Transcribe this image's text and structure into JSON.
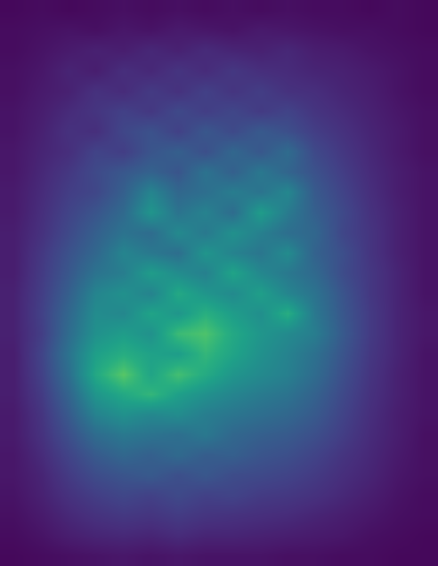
{
  "chart_data": {
    "type": "heatmap",
    "color": "Viridis",
    "tick_labels": false,
    "grid": false,
    "zlim": [
      0,
      1
    ],
    "cells": [
      [
        0.02,
        0.03,
        0.02,
        0.03,
        0.04,
        0.03,
        0.04,
        0.03,
        0.04,
        0.03,
        0.04,
        0.03,
        0.03,
        0.02,
        0.03,
        0.02
      ],
      [
        0.03,
        0.04,
        0.05,
        0.04,
        0.06,
        0.05,
        0.07,
        0.06,
        0.05,
        0.07,
        0.06,
        0.05,
        0.04,
        0.04,
        0.03,
        0.02
      ],
      [
        0.03,
        0.05,
        0.07,
        0.09,
        0.08,
        0.11,
        0.09,
        0.12,
        0.1,
        0.09,
        0.11,
        0.08,
        0.07,
        0.05,
        0.04,
        0.03
      ],
      [
        0.04,
        0.06,
        0.1,
        0.08,
        0.13,
        0.11,
        0.15,
        0.12,
        0.16,
        0.13,
        0.12,
        0.1,
        0.09,
        0.07,
        0.05,
        0.03
      ],
      [
        0.04,
        0.07,
        0.09,
        0.14,
        0.12,
        0.17,
        0.14,
        0.19,
        0.15,
        0.18,
        0.14,
        0.13,
        0.1,
        0.08,
        0.05,
        0.03
      ],
      [
        0.05,
        0.08,
        0.12,
        0.15,
        0.19,
        0.16,
        0.22,
        0.18,
        0.21,
        0.17,
        0.2,
        0.15,
        0.12,
        0.09,
        0.06,
        0.04
      ],
      [
        0.05,
        0.09,
        0.14,
        0.13,
        0.21,
        0.25,
        0.19,
        0.27,
        0.22,
        0.28,
        0.24,
        0.18,
        0.14,
        0.1,
        0.07,
        0.04
      ],
      [
        0.06,
        0.1,
        0.13,
        0.2,
        0.18,
        0.26,
        0.3,
        0.24,
        0.33,
        0.27,
        0.35,
        0.22,
        0.16,
        0.11,
        0.07,
        0.04
      ],
      [
        0.06,
        0.11,
        0.16,
        0.22,
        0.27,
        0.31,
        0.26,
        0.38,
        0.3,
        0.4,
        0.32,
        0.25,
        0.18,
        0.12,
        0.08,
        0.05
      ],
      [
        0.07,
        0.12,
        0.18,
        0.21,
        0.3,
        0.45,
        0.33,
        0.36,
        0.42,
        0.38,
        0.46,
        0.28,
        0.2,
        0.13,
        0.08,
        0.05
      ],
      [
        0.07,
        0.13,
        0.2,
        0.26,
        0.34,
        0.52,
        0.38,
        0.44,
        0.35,
        0.55,
        0.41,
        0.3,
        0.22,
        0.14,
        0.09,
        0.05
      ],
      [
        0.08,
        0.14,
        0.22,
        0.3,
        0.38,
        0.35,
        0.47,
        0.4,
        0.5,
        0.43,
        0.36,
        0.33,
        0.21,
        0.15,
        0.09,
        0.05
      ],
      [
        0.08,
        0.16,
        0.25,
        0.33,
        0.45,
        0.4,
        0.36,
        0.52,
        0.44,
        0.39,
        0.48,
        0.31,
        0.24,
        0.15,
        0.09,
        0.05
      ],
      [
        0.08,
        0.17,
        0.27,
        0.38,
        0.42,
        0.55,
        0.48,
        0.43,
        0.58,
        0.46,
        0.4,
        0.34,
        0.23,
        0.16,
        0.1,
        0.05
      ],
      [
        0.09,
        0.18,
        0.3,
        0.45,
        0.5,
        0.44,
        0.6,
        0.52,
        0.47,
        0.56,
        0.45,
        0.38,
        0.26,
        0.16,
        0.1,
        0.05
      ],
      [
        0.09,
        0.19,
        0.33,
        0.48,
        0.46,
        0.58,
        0.52,
        0.63,
        0.55,
        0.49,
        0.62,
        0.4,
        0.27,
        0.17,
        0.1,
        0.06
      ],
      [
        0.09,
        0.18,
        0.35,
        0.5,
        0.55,
        0.5,
        0.68,
        0.72,
        0.6,
        0.52,
        0.47,
        0.42,
        0.28,
        0.17,
        0.1,
        0.06
      ],
      [
        0.08,
        0.2,
        0.38,
        0.56,
        0.62,
        0.57,
        0.55,
        0.66,
        0.58,
        0.5,
        0.44,
        0.37,
        0.26,
        0.16,
        0.1,
        0.05
      ],
      [
        0.08,
        0.19,
        0.36,
        0.6,
        0.74,
        0.58,
        0.7,
        0.61,
        0.52,
        0.47,
        0.43,
        0.35,
        0.24,
        0.15,
        0.09,
        0.05
      ],
      [
        0.08,
        0.17,
        0.32,
        0.52,
        0.6,
        0.66,
        0.56,
        0.5,
        0.45,
        0.41,
        0.38,
        0.31,
        0.22,
        0.14,
        0.09,
        0.05
      ],
      [
        0.07,
        0.15,
        0.28,
        0.44,
        0.5,
        0.46,
        0.48,
        0.42,
        0.39,
        0.36,
        0.33,
        0.28,
        0.2,
        0.13,
        0.08,
        0.05
      ],
      [
        0.07,
        0.14,
        0.24,
        0.35,
        0.4,
        0.38,
        0.36,
        0.4,
        0.33,
        0.3,
        0.28,
        0.24,
        0.18,
        0.12,
        0.08,
        0.04
      ],
      [
        0.06,
        0.12,
        0.2,
        0.28,
        0.33,
        0.3,
        0.34,
        0.29,
        0.3,
        0.26,
        0.24,
        0.2,
        0.15,
        0.11,
        0.07,
        0.04
      ],
      [
        0.06,
        0.1,
        0.17,
        0.23,
        0.26,
        0.28,
        0.24,
        0.27,
        0.23,
        0.22,
        0.2,
        0.17,
        0.13,
        0.1,
        0.06,
        0.04
      ],
      [
        0.05,
        0.09,
        0.14,
        0.18,
        0.21,
        0.19,
        0.22,
        0.19,
        0.2,
        0.17,
        0.16,
        0.14,
        0.11,
        0.08,
        0.05,
        0.03
      ],
      [
        0.04,
        0.07,
        0.11,
        0.14,
        0.16,
        0.15,
        0.17,
        0.15,
        0.14,
        0.13,
        0.12,
        0.1,
        0.08,
        0.06,
        0.04,
        0.03
      ],
      [
        0.03,
        0.05,
        0.08,
        0.1,
        0.11,
        0.1,
        0.12,
        0.1,
        0.1,
        0.09,
        0.08,
        0.07,
        0.06,
        0.04,
        0.03,
        0.02
      ],
      [
        0.02,
        0.03,
        0.04,
        0.05,
        0.06,
        0.05,
        0.06,
        0.05,
        0.05,
        0.05,
        0.04,
        0.04,
        0.03,
        0.03,
        0.02,
        0.02
      ]
    ]
  }
}
